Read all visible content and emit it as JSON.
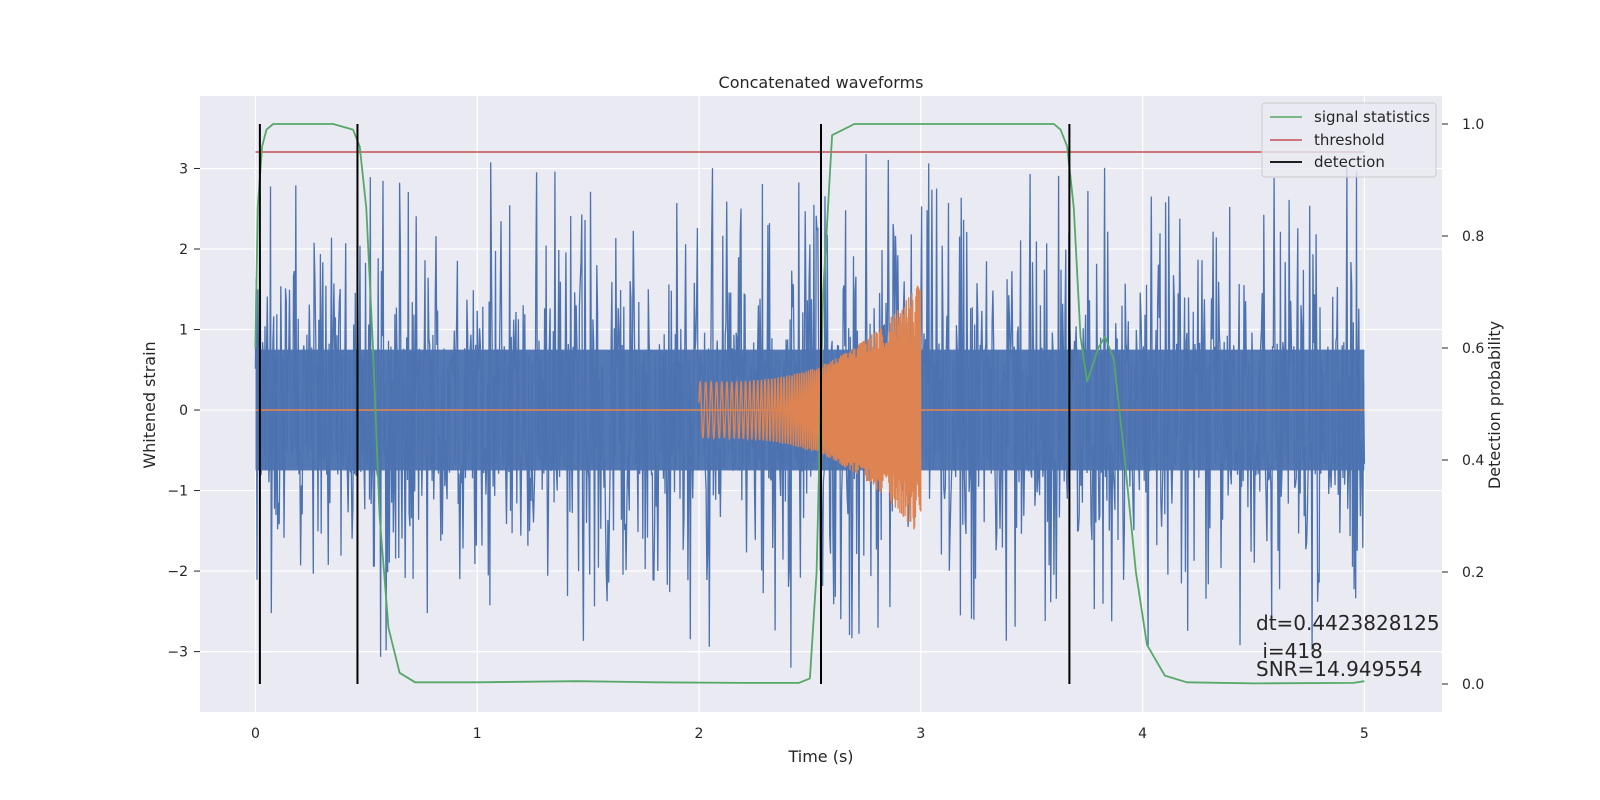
{
  "chart_data": {
    "type": "line",
    "title": "Concatenated waveforms",
    "xlabel": "Time (s)",
    "ylabel": "Whitened strain",
    "y2label": "Detection probability",
    "xlim": [
      -0.25,
      5.35
    ],
    "ylim": [
      -3.75,
      3.9
    ],
    "y2lim": [
      -0.05,
      1.05
    ],
    "x_ticks": [
      0,
      1,
      2,
      3,
      4,
      5
    ],
    "y_ticks": [
      -3,
      -2,
      -1,
      0,
      1,
      2,
      3
    ],
    "y2_ticks": [
      0.0,
      0.2,
      0.4,
      0.6,
      0.8,
      1.0
    ],
    "x_tick_labels": [
      "0",
      "1",
      "2",
      "3",
      "4",
      "5"
    ],
    "y_tick_labels": [
      "−3",
      "−2",
      "−1",
      "0",
      "1",
      "2",
      "3"
    ],
    "y2_tick_labels": [
      "0.0",
      "0.2",
      "0.4",
      "0.6",
      "0.8",
      "1.0"
    ],
    "grid": true,
    "legend_position": "top-right",
    "legend": [
      {
        "label": "signal statistics",
        "color": "#55a868"
      },
      {
        "label": "threshold",
        "color": "#c44e52"
      },
      {
        "label": "detection",
        "color": "#000000"
      }
    ],
    "strain": {
      "color": "#4c72b0",
      "x_range": [
        0,
        5
      ],
      "core_amplitude": 0.8,
      "peak_amplitude": 3.5
    },
    "injected_waveform": {
      "color": "#dd8452",
      "x_start": 2.0,
      "x_end": 3.0,
      "amplitude_start": 0.35,
      "amplitude_end": 1.6
    },
    "threshold": {
      "y2": 0.95,
      "x_range": [
        0,
        5
      ]
    },
    "signal_statistics": {
      "x": [
        0.0,
        0.01,
        0.03,
        0.05,
        0.08,
        0.12,
        0.35,
        0.44,
        0.47,
        0.5,
        0.53,
        0.56,
        0.6,
        0.65,
        0.72,
        1.0,
        1.45,
        1.8,
        2.2,
        2.45,
        2.5,
        2.53,
        2.56,
        2.6,
        2.7,
        3.0,
        3.6,
        3.63,
        3.66,
        3.69,
        3.72,
        3.75,
        3.8,
        3.83,
        3.87,
        3.92,
        3.97,
        4.02,
        4.1,
        4.2,
        4.5,
        4.95,
        5.0
      ],
      "y": [
        0.6,
        0.85,
        0.96,
        0.99,
        1.0,
        1.0,
        1.0,
        0.99,
        0.96,
        0.85,
        0.6,
        0.3,
        0.1,
        0.02,
        0.003,
        0.003,
        0.005,
        0.003,
        0.002,
        0.002,
        0.01,
        0.2,
        0.7,
        0.98,
        1.0,
        1.0,
        1.0,
        0.99,
        0.96,
        0.85,
        0.62,
        0.54,
        0.6,
        0.62,
        0.58,
        0.4,
        0.2,
        0.07,
        0.015,
        0.003,
        0.001,
        0.002,
        0.005
      ]
    },
    "detections": [
      0.02,
      0.46,
      2.55,
      3.67
    ],
    "annotations": [
      "dt=0.4423828125",
      " i=418",
      "SNR=14.949554"
    ]
  }
}
